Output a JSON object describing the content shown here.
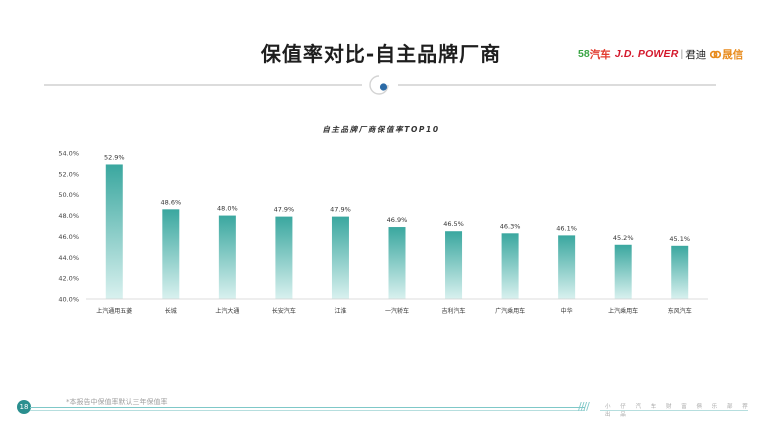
{
  "header": {
    "title": "保值率对比-自主品牌厂商",
    "logos": {
      "logo_58": "58",
      "logo_58_text": "汽车",
      "jdpower": "J.D. POWER",
      "separator": "|",
      "jundi": "君迪",
      "shengxin": "晟信"
    }
  },
  "footer": {
    "page_number": "18",
    "footnote": "*本报告中保值率默认三年保值率",
    "tagline": "小 仔 汽 车 财 富 俱 乐 部 荐 出 品"
  },
  "colors": {
    "bar_top": "#3aa79f",
    "bar_bottom": "#d9f1ef",
    "accent": "#2a8f8f"
  },
  "chart_data": {
    "type": "bar",
    "title": "自主品牌厂商保值率TOP10",
    "categories": [
      "上汽通用五菱",
      "长城",
      "上汽大通",
      "长安汽车",
      "江淮",
      "一汽轿车",
      "吉利汽车",
      "广汽乘用车",
      "中华",
      "上汽乘用车",
      "东风汽车"
    ],
    "values": [
      52.9,
      48.6,
      48.0,
      47.9,
      47.9,
      46.9,
      46.5,
      46.3,
      46.1,
      45.2,
      45.1
    ],
    "value_labels": [
      "52.9%",
      "48.6%",
      "48.0%",
      "47.9%",
      "47.9%",
      "46.9%",
      "46.5%",
      "46.3%",
      "46.1%",
      "45.2%",
      "45.1%"
    ],
    "yticks": [
      40,
      42,
      44,
      46,
      48,
      50,
      52,
      54
    ],
    "ytick_labels": [
      "40.0%",
      "42.0%",
      "44.0%",
      "46.0%",
      "48.0%",
      "50.0%",
      "52.0%",
      "54.0%"
    ],
    "ylim": [
      40,
      54
    ],
    "grid": false,
    "legend": "none"
  }
}
